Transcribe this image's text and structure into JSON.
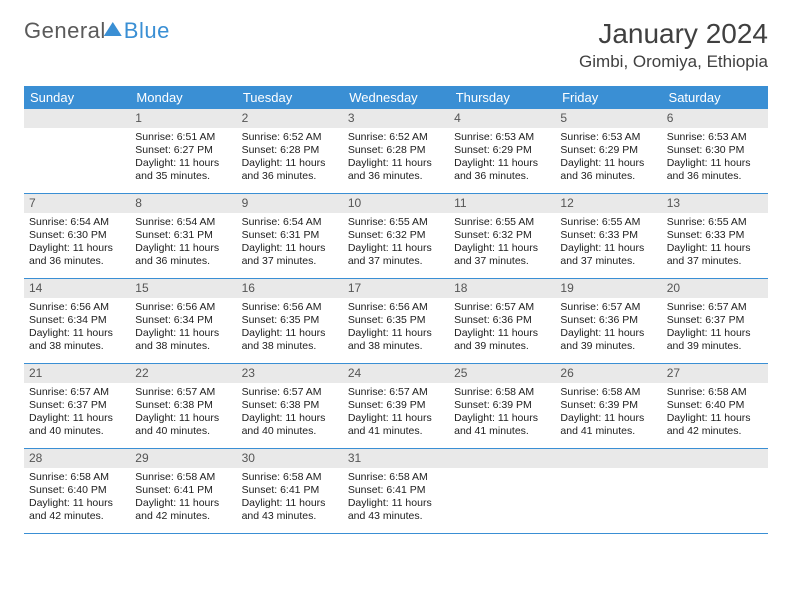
{
  "brand": {
    "part1": "General",
    "part2": "Blue"
  },
  "title": "January 2024",
  "location": "Gimbi, Oromiya, Ethiopia",
  "colors": {
    "accent": "#3a8fd4",
    "daynum_bg": "#e9e9e9",
    "text": "#202020",
    "title_text": "#404040"
  },
  "day_headers": [
    "Sunday",
    "Monday",
    "Tuesday",
    "Wednesday",
    "Thursday",
    "Friday",
    "Saturday"
  ],
  "weeks": [
    [
      null,
      {
        "n": "1",
        "sr": "6:51 AM",
        "ss": "6:27 PM",
        "dl": "11 hours and 35 minutes."
      },
      {
        "n": "2",
        "sr": "6:52 AM",
        "ss": "6:28 PM",
        "dl": "11 hours and 36 minutes."
      },
      {
        "n": "3",
        "sr": "6:52 AM",
        "ss": "6:28 PM",
        "dl": "11 hours and 36 minutes."
      },
      {
        "n": "4",
        "sr": "6:53 AM",
        "ss": "6:29 PM",
        "dl": "11 hours and 36 minutes."
      },
      {
        "n": "5",
        "sr": "6:53 AM",
        "ss": "6:29 PM",
        "dl": "11 hours and 36 minutes."
      },
      {
        "n": "6",
        "sr": "6:53 AM",
        "ss": "6:30 PM",
        "dl": "11 hours and 36 minutes."
      }
    ],
    [
      {
        "n": "7",
        "sr": "6:54 AM",
        "ss": "6:30 PM",
        "dl": "11 hours and 36 minutes."
      },
      {
        "n": "8",
        "sr": "6:54 AM",
        "ss": "6:31 PM",
        "dl": "11 hours and 36 minutes."
      },
      {
        "n": "9",
        "sr": "6:54 AM",
        "ss": "6:31 PM",
        "dl": "11 hours and 37 minutes."
      },
      {
        "n": "10",
        "sr": "6:55 AM",
        "ss": "6:32 PM",
        "dl": "11 hours and 37 minutes."
      },
      {
        "n": "11",
        "sr": "6:55 AM",
        "ss": "6:32 PM",
        "dl": "11 hours and 37 minutes."
      },
      {
        "n": "12",
        "sr": "6:55 AM",
        "ss": "6:33 PM",
        "dl": "11 hours and 37 minutes."
      },
      {
        "n": "13",
        "sr": "6:55 AM",
        "ss": "6:33 PM",
        "dl": "11 hours and 37 minutes."
      }
    ],
    [
      {
        "n": "14",
        "sr": "6:56 AM",
        "ss": "6:34 PM",
        "dl": "11 hours and 38 minutes."
      },
      {
        "n": "15",
        "sr": "6:56 AM",
        "ss": "6:34 PM",
        "dl": "11 hours and 38 minutes."
      },
      {
        "n": "16",
        "sr": "6:56 AM",
        "ss": "6:35 PM",
        "dl": "11 hours and 38 minutes."
      },
      {
        "n": "17",
        "sr": "6:56 AM",
        "ss": "6:35 PM",
        "dl": "11 hours and 38 minutes."
      },
      {
        "n": "18",
        "sr": "6:57 AM",
        "ss": "6:36 PM",
        "dl": "11 hours and 39 minutes."
      },
      {
        "n": "19",
        "sr": "6:57 AM",
        "ss": "6:36 PM",
        "dl": "11 hours and 39 minutes."
      },
      {
        "n": "20",
        "sr": "6:57 AM",
        "ss": "6:37 PM",
        "dl": "11 hours and 39 minutes."
      }
    ],
    [
      {
        "n": "21",
        "sr": "6:57 AM",
        "ss": "6:37 PM",
        "dl": "11 hours and 40 minutes."
      },
      {
        "n": "22",
        "sr": "6:57 AM",
        "ss": "6:38 PM",
        "dl": "11 hours and 40 minutes."
      },
      {
        "n": "23",
        "sr": "6:57 AM",
        "ss": "6:38 PM",
        "dl": "11 hours and 40 minutes."
      },
      {
        "n": "24",
        "sr": "6:57 AM",
        "ss": "6:39 PM",
        "dl": "11 hours and 41 minutes."
      },
      {
        "n": "25",
        "sr": "6:58 AM",
        "ss": "6:39 PM",
        "dl": "11 hours and 41 minutes."
      },
      {
        "n": "26",
        "sr": "6:58 AM",
        "ss": "6:39 PM",
        "dl": "11 hours and 41 minutes."
      },
      {
        "n": "27",
        "sr": "6:58 AM",
        "ss": "6:40 PM",
        "dl": "11 hours and 42 minutes."
      }
    ],
    [
      {
        "n": "28",
        "sr": "6:58 AM",
        "ss": "6:40 PM",
        "dl": "11 hours and 42 minutes."
      },
      {
        "n": "29",
        "sr": "6:58 AM",
        "ss": "6:41 PM",
        "dl": "11 hours and 42 minutes."
      },
      {
        "n": "30",
        "sr": "6:58 AM",
        "ss": "6:41 PM",
        "dl": "11 hours and 43 minutes."
      },
      {
        "n": "31",
        "sr": "6:58 AM",
        "ss": "6:41 PM",
        "dl": "11 hours and 43 minutes."
      },
      null,
      null,
      null
    ]
  ],
  "labels": {
    "sunrise_prefix": "Sunrise: ",
    "sunset_prefix": "Sunset: ",
    "daylight_prefix": "Daylight: "
  }
}
